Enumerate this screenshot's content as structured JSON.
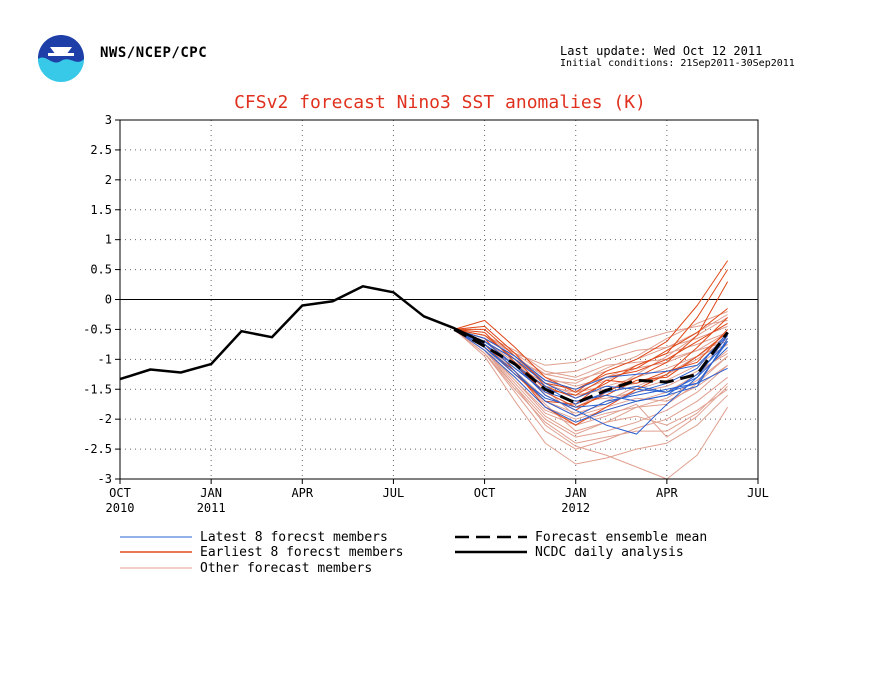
{
  "header": {
    "agency": "NWS/NCEP/CPC",
    "last_update": "Last update: Wed Oct 12 2011",
    "initial_conditions": "Initial conditions: 21Sep2011-30Sep2011"
  },
  "colors": {
    "title": "#e0301e",
    "latest": "#2a60d0",
    "earliest": "#e04818",
    "other": "#e0a090",
    "mean": "#000000",
    "analysis": "#000000",
    "logo_blue": "#1e3ea8",
    "logo_cyan": "#38c8e8"
  },
  "chart_data": {
    "type": "line",
    "title": "CFSv2 forecast Nino3 SST anomalies (K)",
    "xlabel": "",
    "ylabel": "",
    "ylim": [
      -3,
      3
    ],
    "yticks": [
      "3",
      "2.5",
      "2",
      "1.5",
      "1",
      "0.5",
      "0",
      "-0.5",
      "-1",
      "-1.5",
      "-2",
      "-2.5",
      "-3"
    ],
    "xticks": [
      {
        "label": "OCT",
        "sub": "2010"
      },
      {
        "label": "JAN",
        "sub": "2011"
      },
      {
        "label": "APR",
        "sub": ""
      },
      {
        "label": "JUL",
        "sub": ""
      },
      {
        "label": "OCT",
        "sub": ""
      },
      {
        "label": "JAN",
        "sub": "2012"
      },
      {
        "label": "APR",
        "sub": ""
      },
      {
        "label": "JUL",
        "sub": ""
      }
    ],
    "x_range": [
      "2010-10",
      "2012-07"
    ],
    "grid": true,
    "legend": [
      {
        "label": "Latest 8 forecst members",
        "style": "latest"
      },
      {
        "label": "Earliest 8 forecst members",
        "style": "earliest"
      },
      {
        "label": "Other forecast members",
        "style": "other"
      },
      {
        "label": "Forecast ensemble mean",
        "style": "mean"
      },
      {
        "label": "NCDC daily analysis",
        "style": "analysis"
      }
    ],
    "analysis": {
      "name": "NCDC daily analysis",
      "x": [
        "2010-10",
        "2010-11",
        "2010-12",
        "2011-01",
        "2011-02",
        "2011-03",
        "2011-04",
        "2011-05",
        "2011-06",
        "2011-07",
        "2011-08",
        "2011-09",
        "2011-10"
      ],
      "y": [
        -1.33,
        -1.17,
        -1.22,
        -1.08,
        -0.53,
        -0.63,
        -0.1,
        -0.03,
        0.22,
        0.12,
        -0.28,
        -0.48,
        -0.72
      ]
    },
    "forecast_x": [
      "2011-09",
      "2011-10",
      "2011-11",
      "2011-12",
      "2012-01",
      "2012-02",
      "2012-03",
      "2012-04",
      "2012-05",
      "2012-06"
    ],
    "ensemble_mean": {
      "name": "Forecast ensemble mean",
      "y": [
        -0.5,
        -0.78,
        -1.08,
        -1.5,
        -1.73,
        -1.52,
        -1.35,
        -1.38,
        -1.25,
        -0.55
      ]
    },
    "latest_members": [
      [
        -0.5,
        -0.8,
        -1.2,
        -1.7,
        -1.95,
        -1.7,
        -1.6,
        -1.5,
        -1.4,
        -1.15
      ],
      [
        -0.5,
        -0.85,
        -1.3,
        -1.8,
        -2.05,
        -1.85,
        -1.7,
        -1.6,
        -1.25,
        -0.7
      ],
      [
        -0.5,
        -0.7,
        -1.1,
        -1.6,
        -1.85,
        -2.1,
        -2.25,
        -1.75,
        -1.3,
        -0.6
      ],
      [
        -0.5,
        -0.75,
        -1.15,
        -1.55,
        -1.7,
        -1.6,
        -1.7,
        -1.6,
        -1.45,
        -0.65
      ],
      [
        -0.5,
        -0.7,
        -1.0,
        -1.4,
        -1.65,
        -1.45,
        -1.5,
        -1.55,
        -1.4,
        -0.7
      ],
      [
        -0.5,
        -0.8,
        -1.25,
        -1.65,
        -1.8,
        -1.75,
        -1.55,
        -1.4,
        -1.15,
        -0.55
      ],
      [
        -0.5,
        -0.65,
        -0.95,
        -1.35,
        -1.5,
        -1.3,
        -1.25,
        -1.2,
        -1.1,
        -0.6
      ],
      [
        -0.5,
        -0.75,
        -1.1,
        -1.45,
        -1.75,
        -1.55,
        -1.45,
        -1.55,
        -1.3,
        -0.8
      ]
    ],
    "earliest_members": [
      [
        -0.5,
        -0.35,
        -0.8,
        -1.3,
        -1.55,
        -1.2,
        -1.0,
        -0.7,
        -0.1,
        0.65
      ],
      [
        -0.5,
        -0.45,
        -0.9,
        -1.45,
        -1.65,
        -1.4,
        -1.1,
        -0.9,
        -0.3,
        0.5
      ],
      [
        -0.5,
        -0.55,
        -1.05,
        -1.6,
        -1.85,
        -1.55,
        -1.3,
        -1.05,
        -0.6,
        0.3
      ],
      [
        -0.5,
        -0.65,
        -1.2,
        -1.8,
        -2.1,
        -1.8,
        -1.5,
        -1.25,
        -0.8,
        -0.3
      ],
      [
        -0.5,
        -0.6,
        -1.0,
        -1.5,
        -1.6,
        -1.3,
        -1.2,
        -1.0,
        -0.7,
        -0.4
      ],
      [
        -0.5,
        -0.7,
        -1.1,
        -1.55,
        -1.8,
        -1.6,
        -1.35,
        -1.3,
        -0.95,
        -0.55
      ],
      [
        -0.5,
        -0.5,
        -0.95,
        -1.4,
        -1.5,
        -1.25,
        -1.15,
        -0.85,
        -0.55,
        -0.15
      ],
      [
        -0.5,
        -0.75,
        -1.25,
        -1.7,
        -1.75,
        -1.35,
        -1.4,
        -1.2,
        -1.05,
        -0.5
      ]
    ],
    "other_members": [
      [
        -0.5,
        -0.6,
        -0.9,
        -1.1,
        -1.05,
        -0.85,
        -0.7,
        -0.55,
        -0.45,
        -0.35
      ],
      [
        -0.5,
        -0.7,
        -1.0,
        -1.25,
        -1.2,
        -1.0,
        -0.85,
        -0.8,
        -0.65,
        -0.45
      ],
      [
        -0.5,
        -0.75,
        -1.1,
        -1.45,
        -1.55,
        -1.35,
        -1.15,
        -1.05,
        -0.85,
        -0.55
      ],
      [
        -0.5,
        -0.8,
        -1.25,
        -1.7,
        -1.9,
        -1.75,
        -1.5,
        -1.35,
        -1.1,
        -0.75
      ],
      [
        -0.5,
        -0.85,
        -1.4,
        -1.95,
        -2.25,
        -2.05,
        -1.8,
        -1.65,
        -1.35,
        -0.95
      ],
      [
        -0.5,
        -0.9,
        -1.55,
        -2.2,
        -2.5,
        -2.35,
        -2.15,
        -2.0,
        -1.7,
        -1.3
      ],
      [
        -0.5,
        -0.95,
        -1.7,
        -2.4,
        -2.75,
        -2.65,
        -2.5,
        -2.4,
        -2.1,
        -1.6
      ],
      [
        -0.5,
        -0.85,
        -1.45,
        -2.1,
        -2.45,
        -2.6,
        -2.8,
        -3.0,
        -2.6,
        -1.8
      ],
      [
        -0.5,
        -0.75,
        -1.2,
        -1.65,
        -1.8,
        -1.55,
        -1.25,
        -0.95,
        -0.6,
        -0.3
      ],
      [
        -0.5,
        -0.7,
        -1.05,
        -1.35,
        -1.4,
        -1.15,
        -0.95,
        -0.65,
        -0.4,
        -0.2
      ],
      [
        -0.5,
        -0.8,
        -1.35,
        -1.9,
        -2.1,
        -1.95,
        -1.75,
        -2.3,
        -1.95,
        -1.45
      ],
      [
        -0.5,
        -0.65,
        -0.95,
        -1.3,
        -1.45,
        -1.3,
        -1.1,
        -0.9,
        -0.75,
        -0.55
      ],
      [
        -0.5,
        -0.85,
        -1.3,
        -1.8,
        -2.0,
        -1.85,
        -1.7,
        -1.55,
        -1.25,
        -0.85
      ],
      [
        -0.5,
        -0.75,
        -1.15,
        -1.55,
        -1.7,
        -1.65,
        -1.55,
        -1.45,
        -1.2,
        -0.9
      ],
      [
        -0.5,
        -0.7,
        -1.05,
        -1.5,
        -1.95,
        -1.8,
        -1.65,
        -1.7,
        -1.45,
        -1.1
      ],
      [
        -0.5,
        -0.8,
        -1.2,
        -1.75,
        -2.2,
        -2.05,
        -1.95,
        -2.1,
        -1.85,
        -1.5
      ],
      [
        -0.5,
        -0.6,
        -0.85,
        -1.2,
        -1.3,
        -1.1,
        -1.05,
        -1.0,
        -0.85,
        -0.7
      ],
      [
        -0.5,
        -0.9,
        -1.45,
        -2.0,
        -2.3,
        -2.2,
        -2.05,
        -1.85,
        -1.55,
        -1.1
      ],
      [
        -0.5,
        -0.75,
        -1.1,
        -1.4,
        -1.6,
        -1.5,
        -1.4,
        -1.25,
        -1.0,
        -0.65
      ],
      [
        -0.5,
        -0.85,
        -1.35,
        -1.85,
        -2.05,
        -1.9,
        -1.8,
        -1.75,
        -1.4,
        -0.95
      ],
      [
        -0.5,
        -0.7,
        -1.0,
        -1.35,
        -1.55,
        -1.45,
        -1.3,
        -1.15,
        -0.95,
        -0.75
      ],
      [
        -0.5,
        -0.8,
        -1.25,
        -1.7,
        -1.95,
        -1.7,
        -1.45,
        -1.25,
        -0.95,
        -0.6
      ],
      [
        -0.5,
        -0.65,
        -0.9,
        -1.25,
        -1.35,
        -1.2,
        -1.0,
        -0.8,
        -0.55,
        -0.25
      ],
      [
        -0.5,
        -0.9,
        -1.5,
        -2.05,
        -2.4,
        -2.3,
        -2.2,
        -2.2,
        -1.9,
        -1.4
      ]
    ]
  }
}
